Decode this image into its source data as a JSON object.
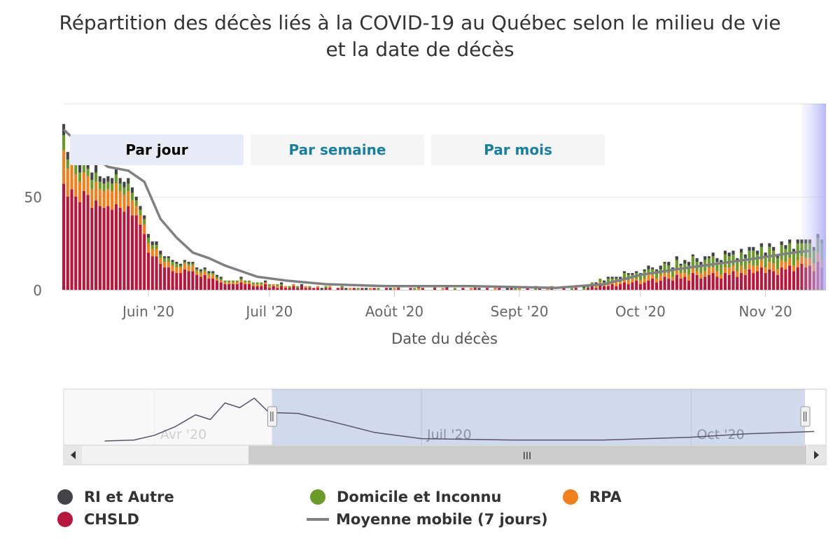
{
  "title_line1": "Répartition des décès liés à la COVID-19 au Québec selon le milieu de vie",
  "title_line2": "et la date de décès",
  "range_buttons": [
    {
      "label": "Par jour",
      "active": true
    },
    {
      "label": "Par semaine",
      "active": false
    },
    {
      "label": "Par mois",
      "active": false
    }
  ],
  "navigator": {
    "labels": [
      "Avr '20",
      "Juil '20",
      "Oct '20"
    ],
    "scroll_grip": "III"
  },
  "legend": [
    {
      "label": "RI et Autre",
      "color": "#434348",
      "type": "dot"
    },
    {
      "label": "Domicile et Inconnu",
      "color": "#6b9a2b",
      "type": "dot"
    },
    {
      "label": "RPA",
      "color": "#f07f1d",
      "type": "dot"
    },
    {
      "label": "CHSLD",
      "color": "#b5173d",
      "type": "dot"
    },
    {
      "label": "Moyenne mobile (7 jours)",
      "color": "#808080",
      "type": "line"
    }
  ],
  "chart_data": {
    "type": "bar",
    "stacked": true,
    "xlabel": "Date du décès",
    "ylabel": "",
    "ylim": [
      0,
      100
    ],
    "y_ticks": [
      0,
      50
    ],
    "x_ticks": [
      {
        "label": "Juin '20",
        "date": "2020-06-01"
      },
      {
        "label": "Juil '20",
        "date": "2020-07-01"
      },
      {
        "label": "Août '20",
        "date": "2020-08-01"
      },
      {
        "label": "Sept '20",
        "date": "2020-09-01"
      },
      {
        "label": "Oct '20",
        "date": "2020-10-01"
      },
      {
        "label": "Nov '20",
        "date": "2020-11-01"
      }
    ],
    "x_range": [
      "2020-05-11",
      "2020-11-16"
    ],
    "segments": [
      {
        "start": "2020-05-11",
        "chsld": [
          57,
          50,
          54,
          50,
          47,
          53,
          51,
          44,
          48,
          45,
          44,
          45,
          43,
          46,
          44,
          42,
          45,
          40,
          40,
          35,
          30,
          20,
          18,
          18,
          14,
          12,
          12,
          10,
          9,
          9,
          11,
          10,
          10,
          8,
          7,
          8,
          6,
          6,
          5,
          4,
          3,
          3,
          3,
          3,
          4,
          3,
          3,
          2,
          2
        ],
        "rpa": [
          18,
          15,
          13,
          12,
          11,
          10,
          10,
          10,
          10,
          9,
          9,
          9,
          10,
          11,
          9,
          9,
          8,
          8,
          5,
          5,
          5,
          5,
          4,
          4,
          3,
          3,
          3,
          3,
          3,
          3,
          3,
          3,
          3,
          2,
          2,
          2,
          2,
          2,
          1,
          1,
          1,
          1,
          1,
          1,
          1,
          1,
          1,
          1,
          1
        ],
        "dom": [
          8,
          5,
          5,
          5,
          5,
          5,
          4,
          5,
          5,
          4,
          4,
          4,
          4,
          5,
          4,
          4,
          4,
          4,
          3,
          3,
          3,
          3,
          2,
          2,
          2,
          2,
          2,
          2,
          2,
          1,
          1,
          1,
          1,
          1,
          1,
          1,
          1,
          1,
          1,
          1,
          1,
          1,
          1,
          1,
          1,
          1,
          1,
          1,
          1
        ],
        "ri": [
          6,
          4,
          4,
          4,
          4,
          4,
          3,
          4,
          4,
          3,
          3,
          3,
          3,
          3,
          3,
          3,
          3,
          3,
          2,
          2,
          2,
          2,
          2,
          2,
          2,
          1,
          1,
          1,
          1,
          1,
          1,
          1,
          1,
          1,
          1,
          1,
          1,
          1,
          1,
          1,
          0,
          0,
          0,
          0,
          1,
          0,
          0,
          0,
          0
        ]
      },
      {
        "start": "2020-06-29",
        "chsld": [
          2,
          3,
          1,
          2,
          1,
          2,
          1,
          1,
          2,
          1,
          2,
          1,
          1,
          1,
          1,
          0,
          1,
          1,
          0,
          1,
          1,
          0,
          0,
          1,
          0,
          1,
          0,
          0,
          1,
          0,
          0,
          1,
          0,
          0,
          1,
          0,
          0,
          1,
          0,
          0,
          1,
          0,
          0,
          1,
          0,
          0,
          1,
          0,
          0,
          0,
          1,
          0,
          0,
          1,
          0,
          0,
          1,
          0,
          0,
          1,
          0,
          0,
          1,
          0,
          0,
          0,
          1,
          0,
          0,
          1,
          0,
          0,
          1,
          0,
          0,
          1,
          0,
          0,
          1,
          0,
          0
        ],
        "rpa": [
          1,
          1,
          1,
          1,
          1,
          0,
          1,
          0,
          1,
          0,
          0,
          1,
          0,
          0,
          1,
          0,
          0,
          1,
          0,
          0,
          0,
          0,
          1,
          0,
          0,
          0,
          0,
          1,
          0,
          0,
          0,
          0,
          0,
          1,
          0,
          0,
          0,
          0,
          0,
          1,
          0,
          0,
          0,
          0,
          0,
          1,
          0,
          0,
          0,
          0,
          0,
          0,
          1,
          0,
          0,
          0,
          0,
          0,
          1,
          0,
          0,
          0,
          0,
          0,
          1,
          0,
          0,
          0,
          0,
          0,
          0,
          1,
          0,
          0,
          0,
          0,
          0,
          0,
          1,
          0,
          0
        ],
        "dom": [
          1,
          0,
          1,
          0,
          1,
          1,
          0,
          1,
          0,
          1,
          0,
          0,
          1,
          0,
          0,
          0,
          1,
          0,
          0,
          0,
          1,
          0,
          0,
          0,
          1,
          0,
          0,
          0,
          0,
          1,
          0,
          0,
          0,
          0,
          1,
          0,
          0,
          0,
          1,
          0,
          0,
          0,
          0,
          1,
          0,
          0,
          0,
          0,
          1,
          0,
          0,
          0,
          0,
          1,
          0,
          0,
          0,
          0,
          1,
          0,
          0,
          0,
          0,
          1,
          0,
          0,
          0,
          0,
          1,
          0,
          0,
          0,
          1,
          0,
          0,
          0,
          0,
          1,
          0,
          0,
          1
        ],
        "ri": [
          0,
          1,
          0,
          0,
          0,
          1,
          0,
          0,
          0,
          0,
          1,
          0,
          0,
          0,
          0,
          1,
          0,
          0,
          0,
          0,
          0,
          1,
          0,
          0,
          0,
          0,
          1,
          0,
          0,
          0,
          0,
          0,
          1,
          0,
          0,
          0,
          0,
          0,
          0,
          1,
          0,
          0,
          0,
          0,
          0,
          0,
          1,
          0,
          0,
          0,
          0,
          0,
          0,
          0,
          1,
          0,
          0,
          0,
          0,
          0,
          0,
          1,
          0,
          0,
          0,
          0,
          0,
          0,
          1,
          0,
          0,
          0,
          0,
          0,
          0,
          1,
          0,
          0,
          0,
          0,
          1
        ]
      },
      {
        "start": "2020-09-18",
        "chsld": [
          1,
          2,
          1,
          3,
          2,
          2,
          3,
          2,
          3,
          4,
          3,
          4,
          5,
          3,
          4,
          5,
          6,
          4,
          5,
          7,
          6,
          5,
          8,
          6,
          7,
          5,
          9,
          8,
          6,
          7,
          8,
          9,
          7,
          6,
          9,
          8,
          10,
          7,
          9,
          8,
          11,
          9,
          10,
          12,
          9,
          11,
          10,
          8,
          12,
          11,
          13,
          10,
          12,
          14,
          12,
          13,
          10,
          15,
          12
        ],
        "rpa": [
          0,
          1,
          1,
          1,
          1,
          2,
          1,
          2,
          1,
          2,
          2,
          2,
          1,
          2,
          2,
          3,
          2,
          2,
          3,
          2,
          3,
          2,
          3,
          3,
          2,
          3,
          3,
          2,
          3,
          3,
          4,
          3,
          3,
          2,
          3,
          4,
          3,
          3,
          4,
          3,
          3,
          4,
          3,
          4,
          3,
          4,
          4,
          3,
          4,
          4,
          4,
          3,
          4,
          4,
          5,
          4,
          4,
          5,
          4
        ],
        "dom": [
          1,
          1,
          1,
          2,
          1,
          2,
          2,
          2,
          2,
          3,
          3,
          2,
          3,
          3,
          4,
          3,
          3,
          4,
          3,
          5,
          4,
          4,
          5,
          4,
          5,
          5,
          6,
          5,
          4,
          6,
          5,
          6,
          5,
          6,
          7,
          6,
          6,
          5,
          7,
          6,
          7,
          8,
          6,
          7,
          6,
          8,
          7,
          6,
          8,
          7,
          8,
          7,
          9,
          7,
          8,
          8,
          7,
          8,
          9
        ],
        "ri": [
          0,
          0,
          1,
          0,
          1,
          1,
          1,
          1,
          1,
          1,
          1,
          1,
          1,
          1,
          1,
          2,
          1,
          1,
          2,
          1,
          2,
          1,
          2,
          1,
          2,
          2,
          1,
          2,
          2,
          2,
          1,
          2,
          2,
          2,
          2,
          2,
          2,
          2,
          2,
          2,
          2,
          2,
          2,
          2,
          2,
          2,
          2,
          2,
          2,
          2,
          2,
          2,
          2,
          2,
          2,
          2,
          2,
          2,
          2
        ]
      }
    ],
    "moving_average": [
      {
        "date": "2020-05-11",
        "value": 86
      },
      {
        "date": "2020-05-14",
        "value": 80
      },
      {
        "date": "2020-05-18",
        "value": 72
      },
      {
        "date": "2020-05-22",
        "value": 66
      },
      {
        "date": "2020-05-27",
        "value": 64
      },
      {
        "date": "2020-05-31",
        "value": 58
      },
      {
        "date": "2020-06-04",
        "value": 38
      },
      {
        "date": "2020-06-08",
        "value": 28
      },
      {
        "date": "2020-06-12",
        "value": 20
      },
      {
        "date": "2020-06-16",
        "value": 17
      },
      {
        "date": "2020-06-20",
        "value": 13
      },
      {
        "date": "2020-06-24",
        "value": 10
      },
      {
        "date": "2020-06-28",
        "value": 7
      },
      {
        "date": "2020-07-05",
        "value": 5
      },
      {
        "date": "2020-07-15",
        "value": 3
      },
      {
        "date": "2020-07-30",
        "value": 2
      },
      {
        "date": "2020-08-20",
        "value": 2
      },
      {
        "date": "2020-09-10",
        "value": 1
      },
      {
        "date": "2020-09-22",
        "value": 3
      },
      {
        "date": "2020-10-01",
        "value": 8
      },
      {
        "date": "2020-10-10",
        "value": 11
      },
      {
        "date": "2020-10-20",
        "value": 14
      },
      {
        "date": "2020-10-30",
        "value": 17
      },
      {
        "date": "2020-11-08",
        "value": 20
      },
      {
        "date": "2020-11-12",
        "value": 21
      }
    ],
    "navigator_series": [
      {
        "date": "2020-03-15",
        "value": 0
      },
      {
        "date": "2020-03-25",
        "value": 2
      },
      {
        "date": "2020-04-01",
        "value": 12
      },
      {
        "date": "2020-04-08",
        "value": 30
      },
      {
        "date": "2020-04-15",
        "value": 55
      },
      {
        "date": "2020-04-20",
        "value": 45
      },
      {
        "date": "2020-04-25",
        "value": 80
      },
      {
        "date": "2020-04-30",
        "value": 70
      },
      {
        "date": "2020-05-05",
        "value": 90
      },
      {
        "date": "2020-05-10",
        "value": 60
      },
      {
        "date": "2020-05-20",
        "value": 58
      },
      {
        "date": "2020-06-01",
        "value": 40
      },
      {
        "date": "2020-06-15",
        "value": 18
      },
      {
        "date": "2020-07-01",
        "value": 5
      },
      {
        "date": "2020-08-01",
        "value": 2
      },
      {
        "date": "2020-09-01",
        "value": 2
      },
      {
        "date": "2020-10-01",
        "value": 8
      },
      {
        "date": "2020-10-20",
        "value": 15
      },
      {
        "date": "2020-11-12",
        "value": 20
      }
    ]
  }
}
